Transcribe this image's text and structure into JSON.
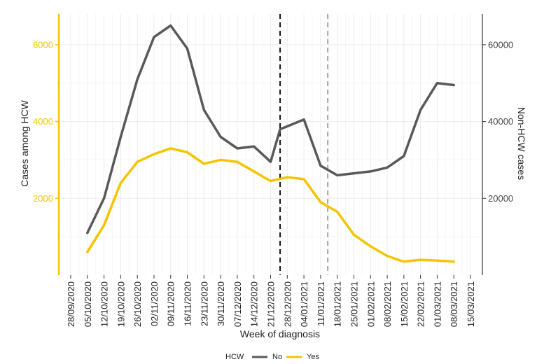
{
  "chart_data": {
    "type": "line",
    "xlabel": "Week of diagnosis",
    "ylabel_left": "Cases among HCW",
    "ylabel_right": "Non-HCW cases",
    "x_tick_labels": [
      "28/09/2020",
      "05/10/2020",
      "12/10/2020",
      "19/10/2020",
      "26/10/2020",
      "02/11/2020",
      "09/11/2020",
      "16/11/2020",
      "23/11/2020",
      "30/11/2020",
      "07/12/2020",
      "14/12/2020",
      "21/12/2020",
      "28/12/2020",
      "04/01/2021",
      "11/01/2021",
      "18/01/2021",
      "25/01/2021",
      "01/02/2021",
      "08/02/2021",
      "15/02/2021",
      "22/02/2021",
      "01/03/2021",
      "08/03/2021",
      "15/03/2021"
    ],
    "y_left_ticks": [
      2000,
      4000,
      6000
    ],
    "y_right_ticks": [
      20000,
      40000,
      60000
    ],
    "y_left_range": [
      0,
      6800
    ],
    "y_right_range": [
      0,
      68000
    ],
    "grid": true,
    "legend": {
      "title": "HCW",
      "placement": "bottom",
      "entries": [
        {
          "label": "No",
          "color": "#595959"
        },
        {
          "label": "Yes",
          "color": "#F5C400"
        }
      ]
    },
    "vertical_lines": [
      {
        "x": "25/12/2020",
        "style": "dashed",
        "color": "#111111"
      },
      {
        "x": "14/01/2021",
        "style": "dashed",
        "color": "#aaaaaa"
      }
    ],
    "series": [
      {
        "name": "No",
        "axis": "right",
        "color": "#595959",
        "x": [
          "05/10/2020",
          "12/10/2020",
          "19/10/2020",
          "26/10/2020",
          "02/11/2020",
          "09/11/2020",
          "16/11/2020",
          "23/11/2020",
          "30/11/2020",
          "07/12/2020",
          "14/12/2020",
          "21/12/2020",
          "25/12/2020",
          "04/01/2021",
          "11/01/2021",
          "18/01/2021",
          "25/01/2021",
          "01/02/2021",
          "08/02/2021",
          "15/02/2021",
          "22/02/2021",
          "01/03/2021",
          "08/03/2021"
        ],
        "values": [
          11000,
          20000,
          36000,
          51000,
          62000,
          65000,
          59000,
          43000,
          36000,
          33000,
          33500,
          29500,
          38000,
          40500,
          28500,
          26000,
          26500,
          27000,
          28000,
          31000,
          43000,
          50000,
          49500
        ]
      },
      {
        "name": "Yes",
        "axis": "left",
        "color": "#F5C400",
        "x": [
          "05/10/2020",
          "12/10/2020",
          "19/10/2020",
          "26/10/2020",
          "02/11/2020",
          "09/11/2020",
          "16/11/2020",
          "23/11/2020",
          "30/11/2020",
          "07/12/2020",
          "14/12/2020",
          "21/12/2020",
          "28/12/2020",
          "04/01/2021",
          "11/01/2021",
          "18/01/2021",
          "25/01/2021",
          "01/02/2021",
          "08/02/2021",
          "15/02/2021",
          "22/02/2021",
          "01/03/2021",
          "08/03/2021"
        ],
        "values": [
          600,
          1300,
          2400,
          2950,
          3150,
          3300,
          3200,
          2900,
          3000,
          2950,
          2700,
          2450,
          2550,
          2500,
          1900,
          1650,
          1050,
          750,
          500,
          350,
          400,
          380,
          350
        ]
      }
    ]
  }
}
